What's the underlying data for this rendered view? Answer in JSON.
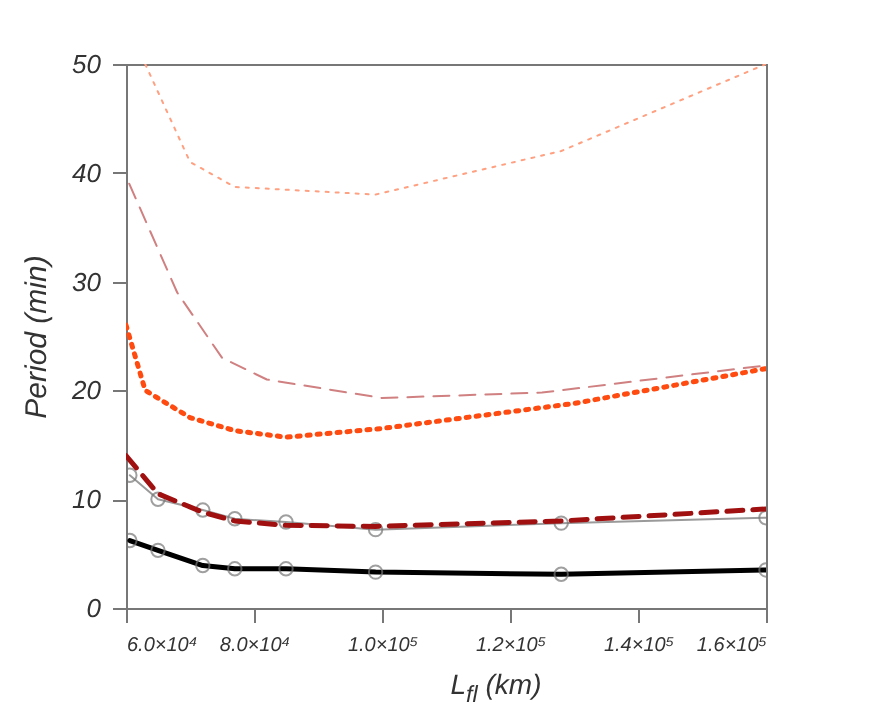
{
  "chart_data": {
    "type": "line",
    "xlabel": "L$_{fl}$ (km)",
    "ylabel": "Period (min)",
    "xlim": [
      60000,
      160000
    ],
    "ylim": [
      0,
      50
    ],
    "xticks": [
      {
        "value": 60000,
        "label": "6.0×10⁴"
      },
      {
        "value": 80000,
        "label": "8.0×10⁴"
      },
      {
        "value": 100000,
        "label": "1.0×10⁵"
      },
      {
        "value": 120000,
        "label": "1.2×10⁵"
      },
      {
        "value": 140000,
        "label": "1.4×10⁵"
      },
      {
        "value": 160000,
        "label": "1.6×10⁵"
      }
    ],
    "yticks": [
      0,
      10,
      20,
      30,
      40,
      50
    ],
    "grid": false,
    "series": [
      {
        "color": "#000000",
        "marker": "circle",
        "line_style": "solid",
        "x": [
          60600,
          65000,
          72000,
          77000,
          85000,
          99000,
          128000,
          160000
        ],
        "values": [
          6.2,
          5.3,
          3.9,
          3.6,
          3.6,
          3.3,
          3.1,
          3.5
        ]
      },
      {
        "color": "#9a9a9a",
        "marker": "circle",
        "line_style": "solid",
        "x": [
          60600,
          65000,
          72000,
          77000,
          85000,
          99000,
          128000,
          160000
        ],
        "values": [
          12.2,
          10.0,
          9.0,
          8.2,
          7.9,
          7.2,
          7.8,
          8.3
        ]
      },
      {
        "color": "#a01010",
        "marker": "none",
        "line_style": "dashed",
        "x": [
          60000,
          65000,
          72000,
          77000,
          85000,
          99000,
          128000,
          160000
        ],
        "values": [
          14.0,
          10.5,
          8.8,
          8.0,
          7.6,
          7.5,
          8.0,
          9.1
        ]
      },
      {
        "color": "#ff4a10",
        "marker": "none",
        "line_style": "dotted",
        "x": [
          60000,
          63000,
          70000,
          77000,
          85000,
          100000,
          130000,
          160000
        ],
        "values": [
          26.0,
          20.0,
          17.5,
          16.3,
          15.7,
          16.5,
          18.8,
          22.0
        ]
      },
      {
        "color": "#d08080",
        "marker": "none",
        "line_style": "dashed",
        "x": [
          60500,
          68000,
          75000,
          82000,
          100000,
          125000,
          160000
        ],
        "values": [
          39.0,
          29.0,
          23.0,
          21.0,
          19.3,
          19.8,
          22.3
        ]
      },
      {
        "color": "#ffa080",
        "marker": "none",
        "line_style": "dotted",
        "x": [
          63000,
          70000,
          77000,
          99000,
          128000,
          160000
        ],
        "values": [
          50.0,
          41.0,
          38.7,
          38.0,
          42.0,
          50.0
        ]
      }
    ]
  }
}
